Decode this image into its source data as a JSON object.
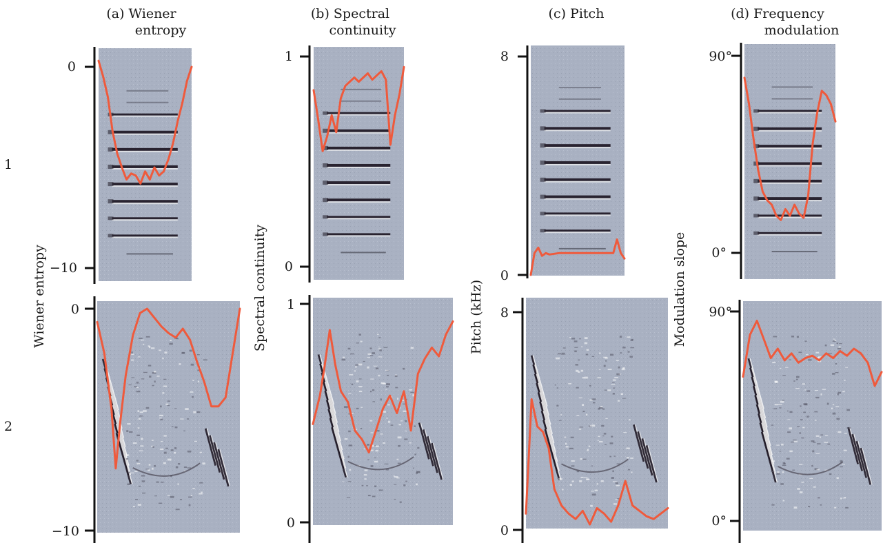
{
  "figure": {
    "columns": [
      {
        "id": "a",
        "title_line1": "(a)  Wiener",
        "title_line2": "entropy",
        "ylabel": "Wiener entropy",
        "ticks": [
          "0",
          "−10"
        ]
      },
      {
        "id": "b",
        "title_line1": "(b) Spectral",
        "title_line2": "continuity",
        "ylabel": "Spectral continuity",
        "ticks": [
          "1",
          "0"
        ]
      },
      {
        "id": "c",
        "title_line1": "(c)  Pitch",
        "title_line2": "",
        "ylabel": "Pitch (kHz)",
        "ticks": [
          "8",
          "0"
        ]
      },
      {
        "id": "d",
        "title_line1": "(d) Frequency",
        "title_line2": "modulation",
        "ylabel": "Modulation slope",
        "ticks": [
          "90°",
          "0°"
        ]
      }
    ],
    "rows": [
      {
        "label": "1"
      },
      {
        "label": "2"
      }
    ],
    "colors": {
      "spectrogram_bg": "#a9b1c2",
      "trace": "#ef5a3c",
      "harmonic": "#1b1420",
      "axis": "#111111"
    }
  },
  "chart_data": [
    {
      "type": "line",
      "column": "a",
      "row": "1",
      "title": "(a)  Wiener entropy",
      "ylabel": "Wiener entropy",
      "ylim": [
        -10,
        0
      ],
      "x": [
        0,
        0.05,
        0.1,
        0.15,
        0.2,
        0.25,
        0.3,
        0.35,
        0.4,
        0.45,
        0.5,
        0.55,
        0.6,
        0.65,
        0.7,
        0.75,
        0.8,
        0.85,
        0.9,
        0.95,
        1.0
      ],
      "y": [
        0.3,
        -0.5,
        -1.5,
        -3.2,
        -4.3,
        -5.0,
        -5.6,
        -5.3,
        -5.4,
        -5.8,
        -5.2,
        -5.6,
        -5.0,
        -5.4,
        -5.2,
        -4.6,
        -3.8,
        -2.7,
        -1.8,
        -0.7,
        0.0
      ]
    },
    {
      "type": "line",
      "column": "b",
      "row": "1",
      "title": "(b) Spectral continuity",
      "ylabel": "Spectral continuity",
      "ylim": [
        0,
        1
      ],
      "x": [
        0,
        0.05,
        0.1,
        0.15,
        0.2,
        0.25,
        0.3,
        0.35,
        0.4,
        0.45,
        0.5,
        0.55,
        0.6,
        0.65,
        0.7,
        0.75,
        0.8,
        0.85,
        0.9,
        0.95,
        1.0
      ],
      "y": [
        0.84,
        0.7,
        0.55,
        0.62,
        0.72,
        0.64,
        0.8,
        0.86,
        0.88,
        0.9,
        0.88,
        0.9,
        0.92,
        0.89,
        0.91,
        0.93,
        0.89,
        0.58,
        0.72,
        0.82,
        0.95
      ]
    },
    {
      "type": "line",
      "column": "c",
      "row": "1",
      "title": "(c)  Pitch",
      "ylabel": "Pitch (kHz)",
      "ylim": [
        0,
        8
      ],
      "x": [
        0,
        0.04,
        0.08,
        0.12,
        0.16,
        0.2,
        0.3,
        0.4,
        0.5,
        0.6,
        0.7,
        0.8,
        0.88,
        0.92,
        0.96,
        1.0
      ],
      "y": [
        0.0,
        0.8,
        1.0,
        0.7,
        0.8,
        0.75,
        0.8,
        0.8,
        0.8,
        0.8,
        0.8,
        0.8,
        0.8,
        1.3,
        0.8,
        0.6
      ]
    },
    {
      "type": "line",
      "column": "d",
      "row": "1",
      "title": "(d) Frequency modulation",
      "ylabel": "Modulation slope",
      "ylim": [
        0,
        90
      ],
      "x": [
        0,
        0.05,
        0.1,
        0.15,
        0.2,
        0.25,
        0.3,
        0.35,
        0.4,
        0.45,
        0.5,
        0.55,
        0.6,
        0.65,
        0.7,
        0.75,
        0.8,
        0.85,
        0.9,
        0.95,
        1.0
      ],
      "y": [
        80,
        68,
        52,
        38,
        28,
        24,
        22,
        17,
        15,
        20,
        17,
        22,
        18,
        16,
        26,
        50,
        64,
        74,
        72,
        68,
        60
      ]
    },
    {
      "type": "line",
      "column": "a",
      "row": "2",
      "title": "(a)  Wiener entropy",
      "ylabel": "Wiener entropy",
      "ylim": [
        -10,
        0
      ],
      "x": [
        0,
        0.05,
        0.1,
        0.13,
        0.16,
        0.2,
        0.25,
        0.3,
        0.35,
        0.4,
        0.45,
        0.5,
        0.55,
        0.6,
        0.65,
        0.7,
        0.75,
        0.8,
        0.85,
        0.9,
        0.95,
        1.0
      ],
      "y": [
        -0.6,
        -2.0,
        -4.5,
        -7.2,
        -5.2,
        -3.0,
        -1.2,
        -0.2,
        0.0,
        -0.4,
        -0.8,
        -1.1,
        -1.3,
        -0.9,
        -1.4,
        -2.4,
        -3.3,
        -4.4,
        -4.4,
        -4.0,
        -2.0,
        0.0
      ]
    },
    {
      "type": "line",
      "column": "b",
      "row": "2",
      "title": "(b) Spectral continuity",
      "ylabel": "Spectral continuity",
      "ylim": [
        0,
        1
      ],
      "x": [
        0,
        0.05,
        0.08,
        0.12,
        0.16,
        0.2,
        0.25,
        0.3,
        0.35,
        0.4,
        0.45,
        0.5,
        0.55,
        0.6,
        0.65,
        0.7,
        0.75,
        0.8,
        0.85,
        0.9,
        0.95,
        1.0
      ],
      "y": [
        0.45,
        0.58,
        0.7,
        0.88,
        0.72,
        0.6,
        0.55,
        0.42,
        0.38,
        0.32,
        0.42,
        0.52,
        0.58,
        0.5,
        0.6,
        0.42,
        0.68,
        0.75,
        0.8,
        0.76,
        0.86,
        0.92
      ]
    },
    {
      "type": "line",
      "column": "c",
      "row": "2",
      "title": "(c)  Pitch",
      "ylabel": "Pitch (kHz)",
      "ylim": [
        0,
        8
      ],
      "x": [
        0,
        0.04,
        0.08,
        0.12,
        0.16,
        0.2,
        0.25,
        0.3,
        0.35,
        0.4,
        0.45,
        0.5,
        0.55,
        0.6,
        0.65,
        0.7,
        0.75,
        0.8,
        0.85,
        0.9,
        0.95,
        1.0
      ],
      "y": [
        0.6,
        4.8,
        3.8,
        3.6,
        3.0,
        1.5,
        0.9,
        0.6,
        0.4,
        0.7,
        0.2,
        0.8,
        0.6,
        0.3,
        0.9,
        1.8,
        0.9,
        0.7,
        0.5,
        0.4,
        0.6,
        0.8
      ]
    },
    {
      "type": "line",
      "column": "d",
      "row": "2",
      "title": "(d) Frequency modulation",
      "ylabel": "Modulation slope",
      "ylim": [
        0,
        90
      ],
      "x": [
        0,
        0.05,
        0.1,
        0.15,
        0.2,
        0.25,
        0.3,
        0.35,
        0.4,
        0.45,
        0.5,
        0.55,
        0.6,
        0.65,
        0.7,
        0.75,
        0.8,
        0.85,
        0.9,
        0.95,
        1.0
      ],
      "y": [
        62,
        80,
        86,
        78,
        70,
        74,
        69,
        72,
        68,
        70,
        71,
        69,
        72,
        70,
        73,
        71,
        74,
        72,
        68,
        58,
        64
      ]
    }
  ]
}
